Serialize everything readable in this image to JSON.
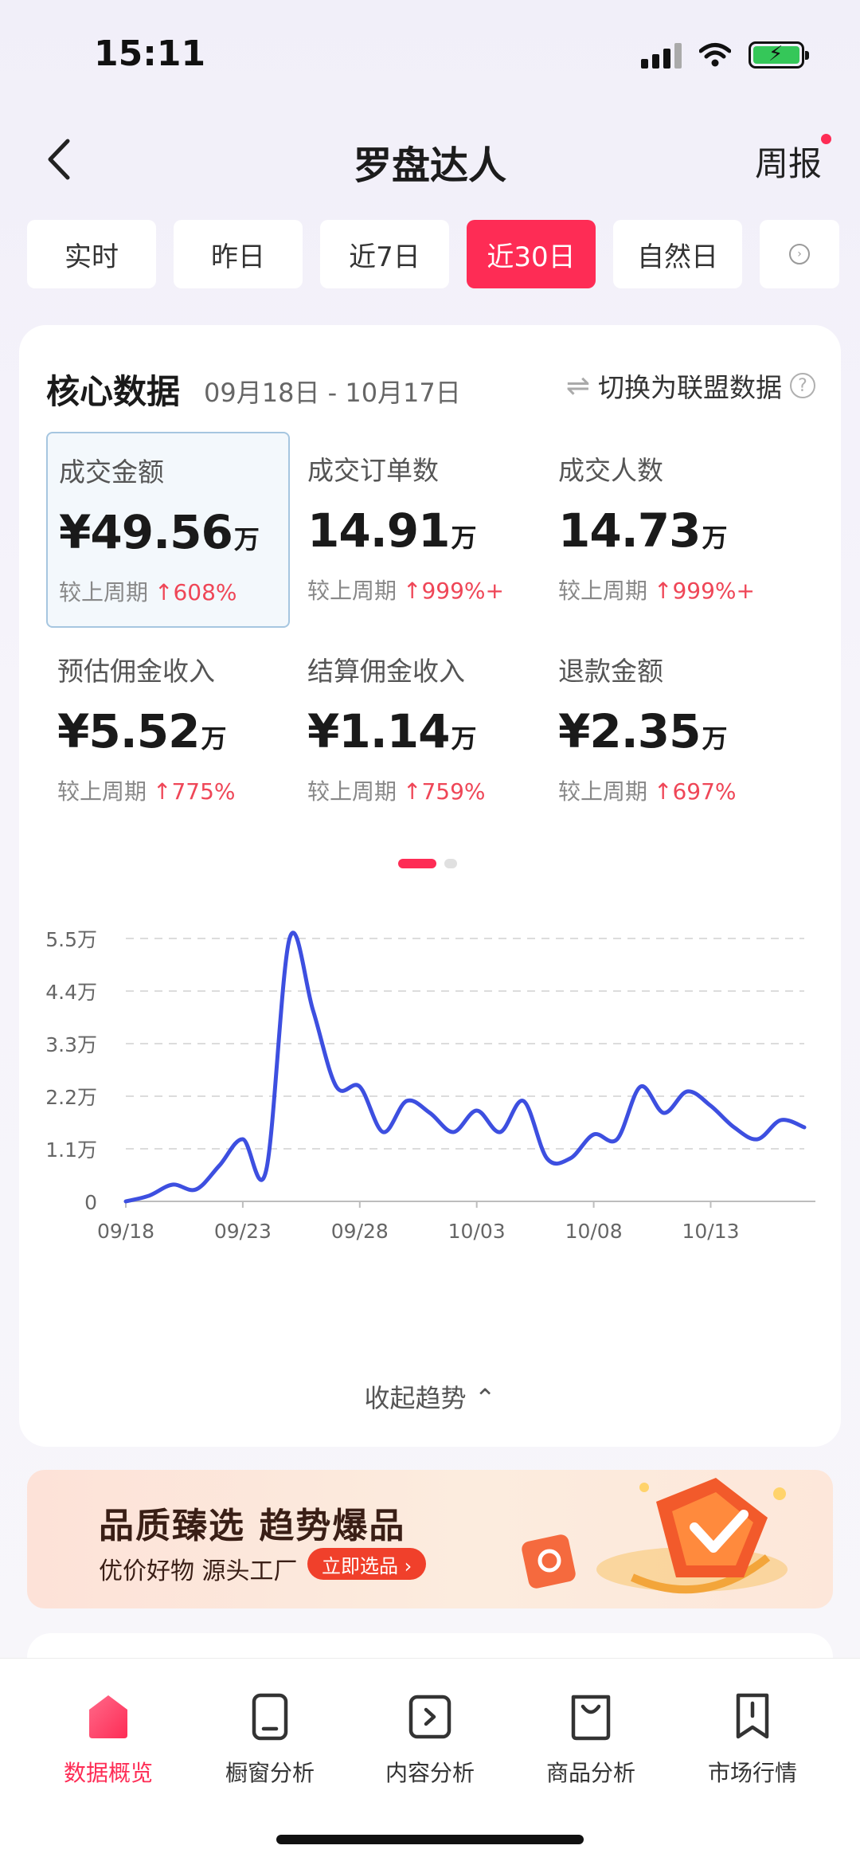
{
  "status_bar": {
    "time": "15:11"
  },
  "nav": {
    "title": "罗盘达人",
    "right_label": "周报"
  },
  "tabs": [
    "实时",
    "昨日",
    "近7日",
    "近30日",
    "自然日"
  ],
  "active_tab_index": 3,
  "card": {
    "title": "核心数据",
    "date_range": "09月18日 - 10月17日",
    "switch_label": "切换为联盟数据",
    "metrics": [
      {
        "label": "成交金额",
        "value": "¥49.56",
        "unit": "万",
        "change_label": "较上周期",
        "change": "608%"
      },
      {
        "label": "成交订单数",
        "value": "14.91",
        "unit": "万",
        "change_label": "较上周期",
        "change": "999%+"
      },
      {
        "label": "成交人数",
        "value": "14.73",
        "unit": "万",
        "change_label": "较上周期",
        "change": "999%+"
      },
      {
        "label": "预估佣金收入",
        "value": "¥5.52",
        "unit": "万",
        "change_label": "较上周期",
        "change": "775%"
      },
      {
        "label": "结算佣金收入",
        "value": "¥1.14",
        "unit": "万",
        "change_label": "较上周期",
        "change": "759%"
      },
      {
        "label": "退款金额",
        "value": "¥2.35",
        "unit": "万",
        "change_label": "较上周期",
        "change": "697%"
      }
    ],
    "collapse_label": "收起趋势"
  },
  "chart_data": {
    "type": "line",
    "title": "",
    "xlabel": "",
    "ylabel": "",
    "ylim": [
      0,
      55000
    ],
    "y_ticks": [
      {
        "value": 0,
        "label": "0"
      },
      {
        "value": 11000,
        "label": "1.1万"
      },
      {
        "value": 22000,
        "label": "2.2万"
      },
      {
        "value": 33000,
        "label": "3.3万"
      },
      {
        "value": 44000,
        "label": "4.4万"
      },
      {
        "value": 55000,
        "label": "5.5万"
      }
    ],
    "x_tick_labels": [
      "09/18",
      "09/23",
      "09/28",
      "10/03",
      "10/08",
      "10/13"
    ],
    "x_tick_index": [
      0,
      5,
      10,
      15,
      20,
      25
    ],
    "categories": [
      "09/18",
      "09/19",
      "09/20",
      "09/21",
      "09/22",
      "09/23",
      "09/24",
      "09/25",
      "09/26",
      "09/27",
      "09/28",
      "09/29",
      "09/30",
      "10/01",
      "10/02",
      "10/03",
      "10/04",
      "10/05",
      "10/06",
      "10/07",
      "10/08",
      "10/09",
      "10/10",
      "10/11",
      "10/12",
      "10/13",
      "10/14",
      "10/15",
      "10/16",
      "10/17"
    ],
    "series": [
      {
        "values": [
          0,
          1200,
          3500,
          2500,
          7500,
          13000,
          6500,
          55000,
          40000,
          24000,
          24000,
          14500,
          21000,
          18500,
          14500,
          19000,
          14500,
          21000,
          9000,
          9000,
          14000,
          13000,
          24000,
          18500,
          23000,
          20000,
          15500,
          13000,
          17000,
          15500
        ]
      }
    ],
    "grid": true,
    "line_color": "#3d4fe0"
  },
  "banner": {
    "title": "品质臻选 趋势爆品",
    "subtitle": "优价好物  源头工厂",
    "button": "立即选品 ›"
  },
  "bottom_nav": [
    {
      "label": "数据概览",
      "icon": "home-icon"
    },
    {
      "label": "橱窗分析",
      "icon": "tablet-icon"
    },
    {
      "label": "内容分析",
      "icon": "play-doc-icon"
    },
    {
      "label": "商品分析",
      "icon": "bag-icon"
    },
    {
      "label": "市场行情",
      "icon": "bookmark-icon"
    }
  ],
  "bottom_nav_active": 0,
  "colors": {
    "accent": "#fe2c55",
    "up": "#ef4657",
    "line": "#3d4fe0"
  }
}
